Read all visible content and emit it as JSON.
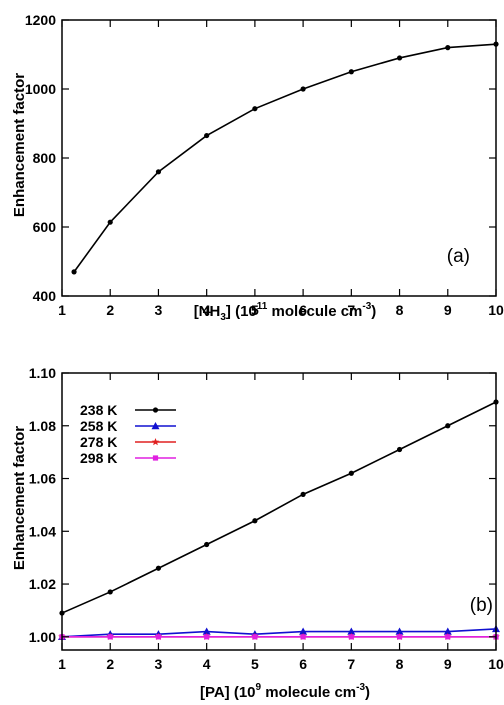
{
  "chart_data": [
    {
      "type": "line",
      "panel_label": "(a)",
      "xlabel": {
        "prefix": "[NH",
        "sub": "3",
        "mid": "] (10",
        "sup": "11",
        "after": " molecule cm",
        "unit_sup": "-3",
        "end": ")"
      },
      "ylabel": "Enhancement factor",
      "xlim": [
        1,
        10
      ],
      "ylim": [
        400,
        1200
      ],
      "x_ticks": [
        "1",
        "2",
        "3",
        "4",
        "5",
        "6",
        "7",
        "8",
        "9",
        "10"
      ],
      "y_ticks": [
        "400",
        "600",
        "800",
        "1000",
        "1200"
      ],
      "grid": false,
      "series": [
        {
          "color": "#000000",
          "marker": "circle",
          "x": [
            1.25,
            2,
            3,
            4,
            5,
            6,
            7,
            8,
            9,
            10
          ],
          "y": [
            470,
            614,
            760,
            865,
            943,
            1000,
            1050,
            1090,
            1120,
            1130
          ]
        }
      ]
    },
    {
      "type": "line",
      "panel_label": "(b)",
      "xlabel": {
        "prefix": "[PA] (10",
        "sup": "9",
        "after": " molecule cm",
        "unit_sup": "-3",
        "end": ")"
      },
      "ylabel": "Enhancement factor",
      "xlim": [
        1,
        10
      ],
      "ylim": [
        0.995,
        1.1
      ],
      "x_ticks": [
        "1",
        "2",
        "3",
        "4",
        "5",
        "6",
        "7",
        "8",
        "9",
        "10"
      ],
      "y_ticks": [
        "1.00",
        "1.02",
        "1.04",
        "1.06",
        "1.08",
        "1.10"
      ],
      "grid": false,
      "legend_position": "top-left",
      "series": [
        {
          "name": "238 K",
          "color": "#000000",
          "marker": "circle",
          "x": [
            1,
            2,
            3,
            4,
            5,
            6,
            7,
            8,
            9,
            10
          ],
          "y": [
            1.009,
            1.017,
            1.026,
            1.035,
            1.044,
            1.054,
            1.062,
            1.071,
            1.08,
            1.089
          ]
        },
        {
          "name": "258 K",
          "color": "#1010d0",
          "marker": "triangle",
          "x": [
            1,
            2,
            3,
            4,
            5,
            6,
            7,
            8,
            9,
            10
          ],
          "y": [
            1.0,
            1.001,
            1.001,
            1.002,
            1.001,
            1.002,
            1.002,
            1.002,
            1.002,
            1.003
          ]
        },
        {
          "name": "278 K",
          "color": "#e02020",
          "marker": "star",
          "x": [
            1,
            2,
            3,
            4,
            5,
            6,
            7,
            8,
            9,
            10
          ],
          "y": [
            1.0,
            1.0,
            1.0,
            1.0,
            1.0,
            1.0,
            1.0,
            1.0,
            1.0,
            1.0
          ]
        },
        {
          "name": "298 K",
          "color": "#e020e0",
          "marker": "square",
          "x": [
            1,
            2,
            3,
            4,
            5,
            6,
            7,
            8,
            9,
            10
          ],
          "y": [
            1.0,
            1.0,
            1.0,
            1.0,
            1.0,
            1.0,
            1.0,
            1.0,
            1.0,
            1.0
          ]
        }
      ]
    }
  ]
}
